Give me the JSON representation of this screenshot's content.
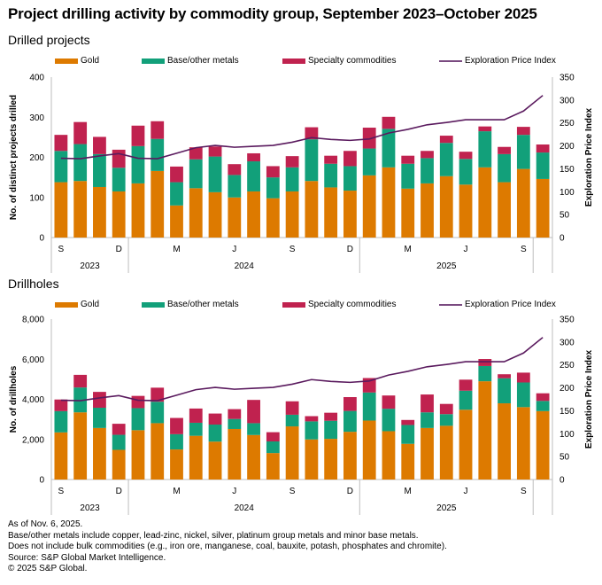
{
  "title": "Project drilling activity by commodity group, September 2023–October 2025",
  "colors": {
    "gold": "#dd7a00",
    "base": "#12a07a",
    "specialty": "#c0224f",
    "index": "#5a1a5e",
    "axis": "#bdbdbd"
  },
  "legend": [
    "Gold",
    "Base/other metals",
    "Specialty commodities",
    "Exploration Price Index"
  ],
  "x_month_labels": [
    {
      "i": 0,
      "t": "S"
    },
    {
      "i": 3,
      "t": "D"
    },
    {
      "i": 6,
      "t": "M"
    },
    {
      "i": 9,
      "t": "J"
    },
    {
      "i": 12,
      "t": "S"
    },
    {
      "i": 15,
      "t": "D"
    },
    {
      "i": 18,
      "t": "M"
    },
    {
      "i": 21,
      "t": "J"
    },
    {
      "i": 24,
      "t": "S"
    }
  ],
  "x_year_labels": [
    {
      "from": 0,
      "to": 4,
      "t": "2023"
    },
    {
      "from": 4,
      "to": 16,
      "t": "2024"
    },
    {
      "from": 16,
      "to": 25,
      "t": "2025"
    }
  ],
  "chart_data": [
    {
      "type": "bar",
      "subtitle": "Drilled projects",
      "ylabel": "No. of distinct projects drilled",
      "y2label": "Exploration Price Index",
      "ylim": [
        0,
        400
      ],
      "yticks": [
        0,
        100,
        200,
        300,
        400
      ],
      "y2lim": [
        0,
        350
      ],
      "y2ticks": [
        0,
        50,
        100,
        150,
        200,
        250,
        300,
        350
      ],
      "categories": [
        "Sep 2023",
        "Oct 2023",
        "Nov 2023",
        "Dec 2023",
        "Jan 2024",
        "Feb 2024",
        "Mar 2024",
        "Apr 2024",
        "May 2024",
        "Jun 2024",
        "Jul 2024",
        "Aug 2024",
        "Sep 2024",
        "Oct 2024",
        "Nov 2024",
        "Dec 2024",
        "Jan 2025",
        "Feb 2025",
        "Mar 2025",
        "Apr 2025",
        "May 2025",
        "Jun 2025",
        "Jul 2025",
        "Aug 2025",
        "Sep 2025",
        "Oct 2025"
      ],
      "series": [
        {
          "name": "Gold",
          "values": [
            138,
            141,
            126,
            115,
            135,
            166,
            80,
            123,
            113,
            100,
            115,
            98,
            115,
            141,
            125,
            117,
            155,
            175,
            122,
            135,
            153,
            132,
            175,
            138,
            171,
            146
          ]
        },
        {
          "name": "Base/other metals",
          "values": [
            78,
            92,
            82,
            59,
            93,
            80,
            58,
            72,
            89,
            56,
            75,
            52,
            60,
            104,
            59,
            61,
            67,
            96,
            62,
            63,
            83,
            64,
            90,
            70,
            85,
            66
          ]
        },
        {
          "name": "Specialty commodities",
          "values": [
            40,
            55,
            43,
            45,
            51,
            44,
            39,
            30,
            25,
            27,
            20,
            28,
            28,
            30,
            20,
            38,
            52,
            30,
            20,
            18,
            18,
            18,
            12,
            18,
            20,
            20
          ]
        },
        {
          "name": "Exploration Price Index",
          "axis": "right",
          "values": [
            173,
            172,
            178,
            183,
            173,
            172,
            184,
            196,
            201,
            197,
            199,
            201,
            208,
            218,
            214,
            212,
            215,
            228,
            236,
            246,
            251,
            257,
            257,
            257,
            276,
            310
          ]
        }
      ]
    },
    {
      "type": "bar",
      "subtitle": "Drillholes",
      "ylabel": "No. of drillholes",
      "y2label": "Exploration Price Index",
      "ylim": [
        0,
        8000
      ],
      "yticks": [
        0,
        2000,
        4000,
        6000,
        8000
      ],
      "ytick_labels": [
        "0",
        "2,000",
        "4,000",
        "6,000",
        "8,000"
      ],
      "y2lim": [
        0,
        350
      ],
      "y2ticks": [
        0,
        50,
        100,
        150,
        200,
        250,
        300,
        350
      ],
      "categories": [
        "Sep 2023",
        "Oct 2023",
        "Nov 2023",
        "Dec 2023",
        "Jan 2024",
        "Feb 2024",
        "Mar 2024",
        "Apr 2024",
        "May 2024",
        "Jun 2024",
        "Jul 2024",
        "Aug 2024",
        "Sep 2024",
        "Oct 2024",
        "Nov 2024",
        "Dec 2024",
        "Jan 2025",
        "Feb 2025",
        "Mar 2025",
        "Apr 2025",
        "May 2025",
        "Jun 2025",
        "Jul 2025",
        "Aug 2025",
        "Sep 2025",
        "Oct 2025"
      ],
      "series": [
        {
          "name": "Gold",
          "values": [
            2350,
            3350,
            2570,
            1480,
            2460,
            2810,
            1500,
            2180,
            1890,
            2520,
            2220,
            1320,
            2650,
            2000,
            2030,
            2380,
            2940,
            2410,
            1780,
            2570,
            2680,
            3480,
            4900,
            3800,
            3610,
            3410
          ]
        },
        {
          "name": "Base/other metals",
          "values": [
            1060,
            1240,
            1010,
            750,
            1100,
            1070,
            760,
            650,
            850,
            500,
            590,
            580,
            580,
            900,
            900,
            1040,
            1400,
            1120,
            940,
            780,
            580,
            950,
            760,
            1250,
            1230,
            510
          ]
        },
        {
          "name": "Specialty commodities",
          "values": [
            580,
            630,
            790,
            550,
            610,
            700,
            810,
            710,
            550,
            490,
            1160,
            460,
            670,
            260,
            400,
            690,
            720,
            660,
            250,
            890,
            510,
            550,
            350,
            200,
            490,
            380
          ]
        },
        {
          "name": "Exploration Price Index",
          "axis": "right",
          "values": [
            173,
            172,
            178,
            183,
            173,
            172,
            184,
            196,
            201,
            197,
            199,
            201,
            208,
            218,
            214,
            212,
            215,
            228,
            236,
            246,
            251,
            257,
            257,
            257,
            276,
            310
          ]
        }
      ]
    }
  ],
  "footnotes": [
    "As of Nov. 6, 2025.",
    "Base/other metals include copper, lead-zinc, nickel, silver, platinum group metals and minor base metals.",
    "Does not include bulk commodities (e.g., iron ore, manganese, coal, bauxite, potash, phosphates and chromite).",
    "Source: S&P Global Market Intelligence.",
    "© 2025 S&P Global."
  ]
}
